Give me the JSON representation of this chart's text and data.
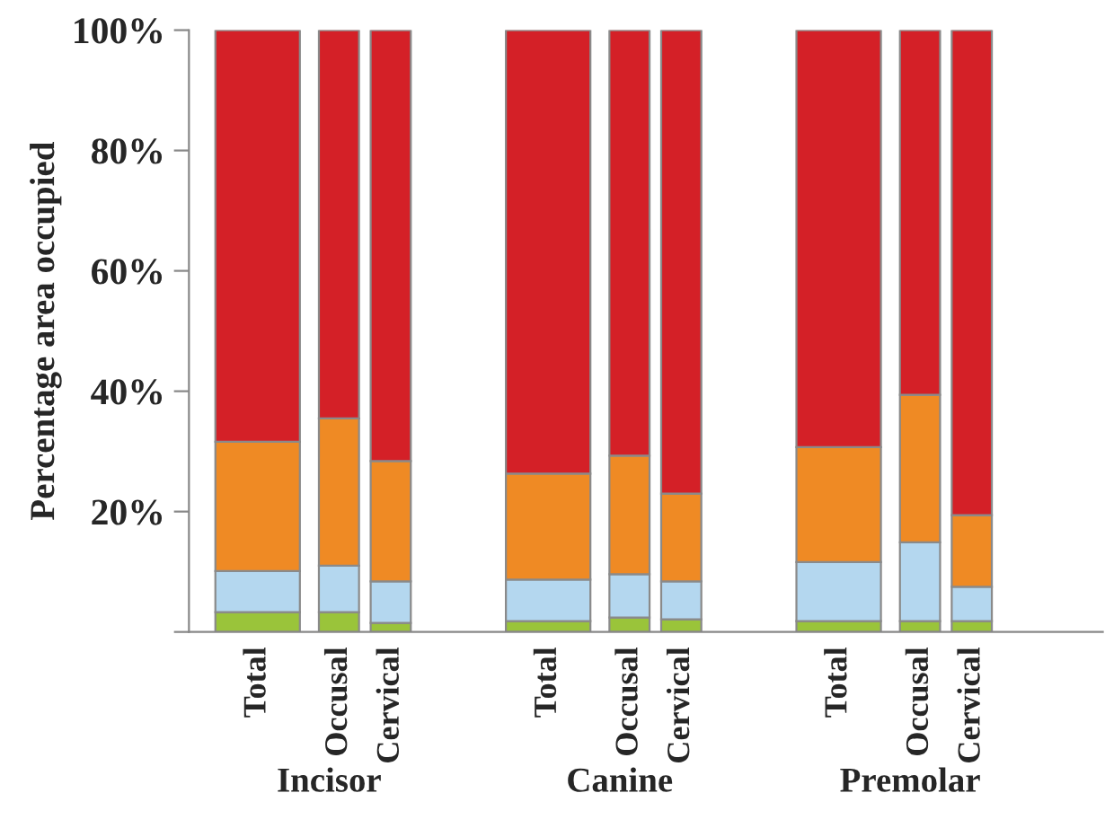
{
  "chart_data": {
    "type": "bar",
    "stacked": true,
    "ylabel": "Percentage area occupied",
    "categories": [
      "Total",
      "Occusal",
      "Cervical",
      "Total",
      "Occusal",
      "Cervical",
      "Total",
      "Occusal",
      "Cervical"
    ],
    "annotations": [
      "Incisor",
      "Canine",
      "Premolar"
    ],
    "series": [
      {
        "color": "#9ac43a",
        "values": [
          3.3,
          3.3,
          1.5,
          1.8,
          2.4,
          2.1,
          1.8,
          1.8,
          1.8
        ]
      },
      {
        "color": "#b4d7ef",
        "values": [
          6.8,
          7.7,
          6.9,
          6.9,
          7.2,
          6.3,
          9.8,
          13.1,
          5.7
        ]
      },
      {
        "color": "#ef8a24",
        "values": [
          21.5,
          24.5,
          20,
          17.6,
          19.7,
          14.6,
          19.1,
          24.5,
          11.9
        ]
      },
      {
        "color": "#d42027",
        "values": [
          68.4,
          64.5,
          71.6,
          73.7,
          70.7,
          77,
          69.3,
          60.6,
          80.6
        ]
      }
    ],
    "ylim": [
      0,
      100
    ],
    "yticks": [
      {
        "value": 0,
        "label": null
      },
      {
        "value": 20,
        "label": "20%"
      },
      {
        "value": 40,
        "label": "40%"
      },
      {
        "value": 60,
        "label": "60%"
      },
      {
        "value": 80,
        "label": "80%"
      },
      {
        "value": 100,
        "label": "100%"
      }
    ],
    "grid": false,
    "legend": false
  }
}
